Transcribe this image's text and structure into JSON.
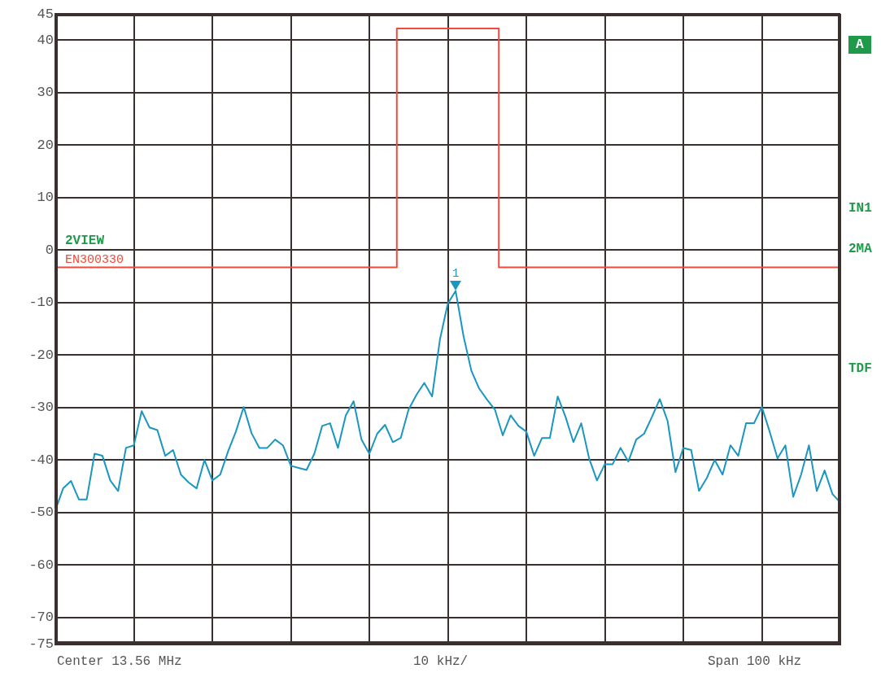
{
  "chart_data": {
    "type": "line",
    "categories": [
      null,
      null,
      null,
      null,
      null,
      null,
      null,
      null,
      null,
      null,
      null,
      null,
      null,
      null,
      null,
      null,
      null,
      null,
      null,
      null,
      null,
      null,
      null,
      null,
      null,
      null,
      null,
      null,
      null,
      null,
      null,
      null,
      null,
      null,
      null,
      null,
      null,
      null,
      null,
      null,
      null,
      null,
      null,
      null,
      null,
      null,
      null,
      null,
      null,
      null,
      null,
      null,
      null,
      null,
      null,
      null,
      null,
      null,
      null,
      null,
      null,
      null,
      null,
      null,
      null,
      null,
      null,
      null,
      null,
      null,
      null,
      null,
      null,
      null,
      null,
      null,
      null,
      null,
      null,
      null,
      null,
      null,
      null,
      null,
      null,
      null,
      null,
      null,
      null,
      null,
      null,
      null,
      null,
      null,
      null,
      null,
      null,
      null,
      null,
      null,
      null
    ],
    "series": [
      {
        "color": "#1a96c0",
        "values": [
          -49.6,
          -45.4,
          -44,
          -47.5,
          -47.5,
          -38.8,
          -39.2,
          -43.9,
          -45.9,
          -37.7,
          -37.2,
          -30.7,
          -33.8,
          -34.3,
          -39.2,
          -38.1,
          -42.8,
          -44.3,
          -45.4,
          -40,
          -43.9,
          -42.8,
          -38.4,
          -34.6,
          -29.9,
          -34.9,
          -37.7,
          -37.7,
          -36.1,
          -37.2,
          -41.1,
          -41.5,
          -41.9,
          -38.8,
          -33.5,
          -33,
          -37.7,
          -31.5,
          -28.8,
          -36.1,
          -38.8,
          -35,
          -33.3,
          -36.6,
          -35.8,
          -30.4,
          -27.6,
          -25.3,
          -27.9,
          -17,
          -10.2,
          -7.8,
          -16.4,
          -23,
          -26.4,
          -28.5,
          -30.4,
          -35.3,
          -31.5,
          -33.5,
          -34.6,
          -39.2,
          -35.8,
          -35.8,
          -27.9,
          -31.8,
          -36.6,
          -33,
          -39.7,
          -43.9,
          -40.8,
          -40.8,
          -37.7,
          -40.3,
          -36.1,
          -35,
          -31.8,
          -28.4,
          -32.6,
          -42.3,
          -37.7,
          -38.1,
          -45.9,
          -43.4,
          -40,
          -42.8,
          -37.2,
          -39.2,
          -33,
          -33,
          -29.9,
          -34.6,
          -39.7,
          -37.2,
          -47,
          -42.8,
          -37.2,
          -45.9,
          -42,
          -46.5,
          -48.1
        ]
      },
      {
        "name": "EN300330",
        "type": "step",
        "color": "#f04a3a",
        "values": [
          -3.3,
          -3.3,
          -3.3,
          -3.3,
          -3.3,
          -3.3,
          -3.3,
          -3.3,
          -3.3,
          -3.3,
          -3.3,
          -3.3,
          -3.3,
          -3.3,
          -3.3,
          -3.3,
          -3.3,
          -3.3,
          -3.3,
          -3.3,
          -3.3,
          -3.3,
          -3.3,
          -3.3,
          -3.3,
          -3.3,
          -3.3,
          -3.3,
          -3.3,
          -3.3,
          -3.3,
          -3.3,
          -3.3,
          -3.3,
          -3.3,
          -3.3,
          -3.3,
          -3.3,
          -3.3,
          -3.3,
          -3.3,
          -3.3,
          -3.3,
          -3.3,
          42.2,
          42.2,
          42.2,
          42.2,
          42.2,
          42.2,
          42.2,
          42.2,
          42.2,
          42.2,
          42.2,
          42.2,
          42.2,
          -3.3,
          -3.3,
          -3.3,
          -3.3,
          -3.3,
          -3.3,
          -3.3,
          -3.3,
          -3.3,
          -3.3,
          -3.3,
          -3.3,
          -3.3,
          -3.3,
          -3.3,
          -3.3,
          -3.3,
          -3.3,
          -3.3,
          -3.3,
          -3.3,
          -3.3,
          -3.3,
          -3.3,
          -3.3,
          -3.3,
          -3.3,
          -3.3,
          -3.3,
          -3.3,
          -3.3,
          -3.3,
          -3.3,
          -3.3,
          -3.3,
          -3.3,
          -3.3,
          -3.3,
          -3.3,
          -3.3,
          -3.3,
          -3.3,
          -3.3,
          -3.3
        ]
      }
    ],
    "ylim": [
      -75,
      45
    ],
    "yticks": [
      -75,
      -70,
      -60,
      -50,
      -40,
      -30,
      -20,
      -10,
      0,
      10,
      20,
      30,
      40,
      45
    ],
    "tick_labels": "y",
    "grid": true,
    "legend": false,
    "marker": "none",
    "line_style": "solid",
    "annotations": [
      "Center 13.56 MHz",
      "10 kHz/",
      "Span 100 kHz",
      "2VIEW",
      "A",
      "IN1",
      "2MA",
      "TDF",
      {
        "text": "1",
        "y": -7.8
      }
    ]
  }
}
